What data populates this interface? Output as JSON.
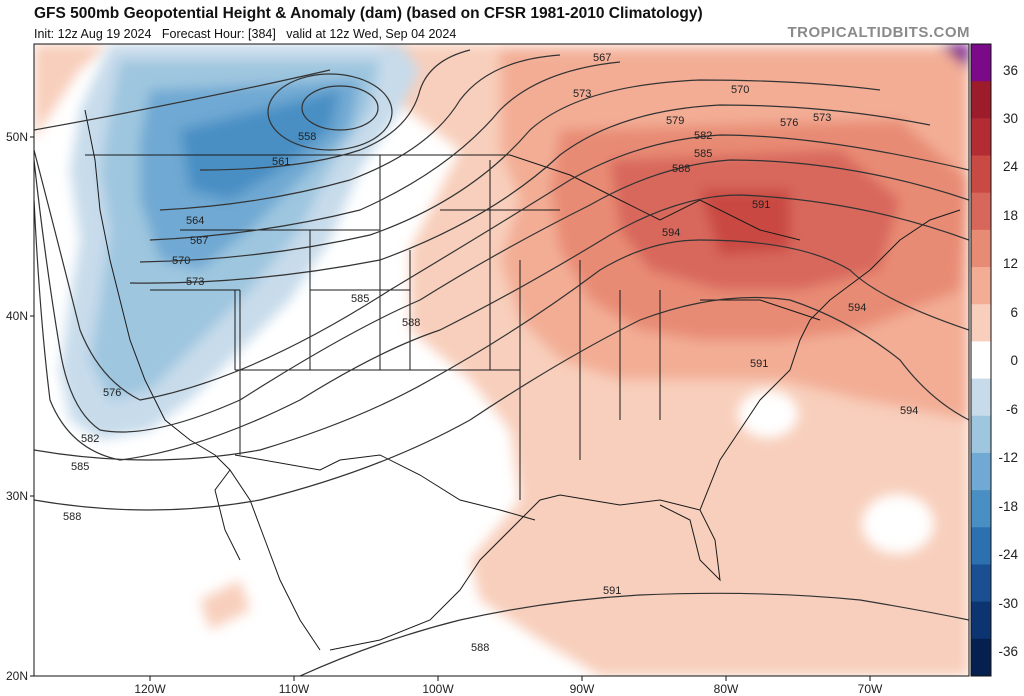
{
  "header": {
    "title": "GFS 500mb Geopotential Height & Anomaly (dam) (based on CFSR 1981-2010 Climatology)",
    "init": "Init: 12z Aug 19 2024",
    "forecast_hour": "Forecast Hour: [384]",
    "valid": "valid at 12z Wed, Sep 04 2024",
    "brand": "TROPICALTIDBITS.COM"
  },
  "axes": {
    "lat": [
      "50N",
      "40N",
      "30N",
      "20N"
    ],
    "lon": [
      "120W",
      "110W",
      "100W",
      "90W",
      "80W",
      "70W"
    ]
  },
  "colorbar": {
    "labels": [
      "36",
      "30",
      "24",
      "18",
      "12",
      "6",
      "0",
      "-6",
      "-12",
      "-18",
      "-24",
      "-30",
      "-36"
    ],
    "colors": [
      "#7b0a8a",
      "#9c1c2c",
      "#b32b33",
      "#c94a43",
      "#d8675b",
      "#e88b75",
      "#f3ad95",
      "#f8cfbc",
      "#ffffff",
      "#c7dbeb",
      "#9ec6df",
      "#70a9d3",
      "#4a8fc4",
      "#2d70b0",
      "#1a4f91",
      "#0c3470",
      "#05204f"
    ]
  },
  "contours": {
    "labels": [
      "567",
      "570",
      "573",
      "576",
      "579",
      "582",
      "585",
      "588",
      "591",
      "594",
      "558",
      "561",
      "564",
      "567",
      "570",
      "573",
      "576",
      "582",
      "585",
      "588",
      "585",
      "588",
      "591",
      "594",
      "594",
      "591",
      "588",
      "573"
    ]
  }
}
